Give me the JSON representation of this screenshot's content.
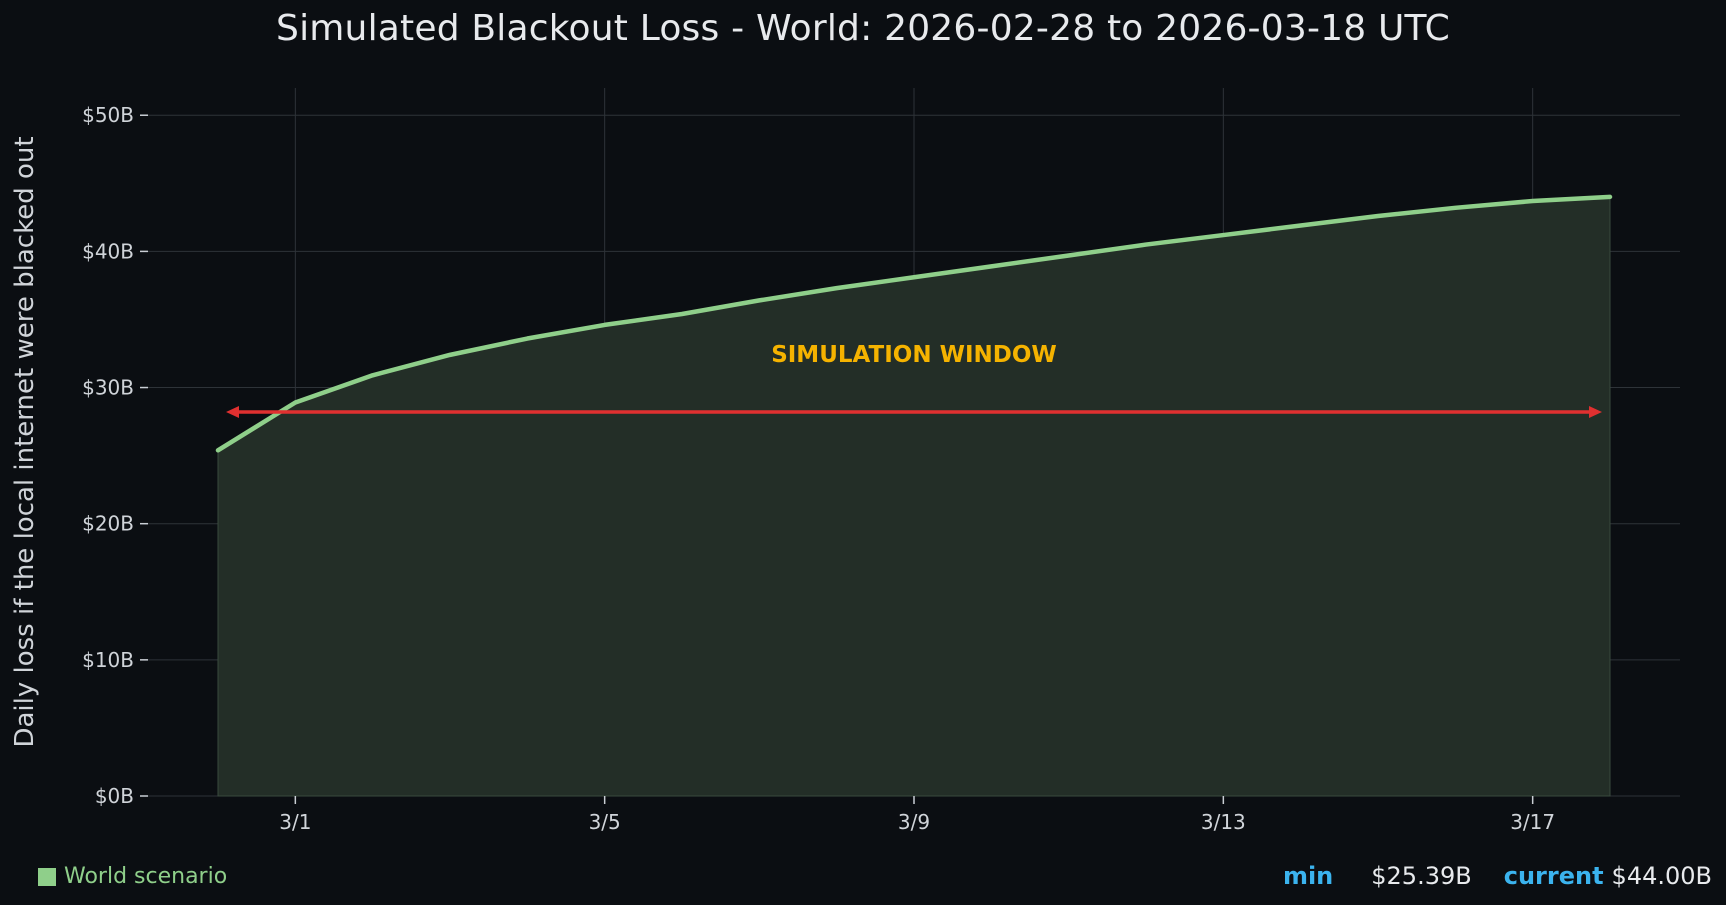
{
  "chart_data": {
    "type": "area",
    "title": "Simulated Blackout Loss - World: 2026-02-28 to 2026-03-18 UTC",
    "ylabel": "Daily loss if the local internet were blacked out",
    "xlabel": "",
    "x": [
      "2026-02-28",
      "2026-03-01",
      "2026-03-02",
      "2026-03-03",
      "2026-03-04",
      "2026-03-05",
      "2026-03-06",
      "2026-03-07",
      "2026-03-08",
      "2026-03-09",
      "2026-03-10",
      "2026-03-11",
      "2026-03-12",
      "2026-03-13",
      "2026-03-14",
      "2026-03-15",
      "2026-03-16",
      "2026-03-17",
      "2026-03-18"
    ],
    "series": [
      {
        "name": "World scenario",
        "values": [
          25.39,
          28.9,
          30.9,
          32.4,
          33.6,
          34.6,
          35.4,
          36.4,
          37.3,
          38.1,
          38.9,
          39.7,
          40.5,
          41.2,
          41.9,
          42.6,
          43.2,
          43.7,
          44.0
        ]
      }
    ],
    "ylim": [
      0,
      52
    ],
    "yticks": [
      0,
      10,
      20,
      30,
      40,
      50
    ],
    "ytick_labels": [
      "$0B",
      "$10B",
      "$20B",
      "$30B",
      "$40B",
      "$50B"
    ],
    "xticks": [
      "2026-03-01",
      "2026-03-05",
      "2026-03-09",
      "2026-03-13",
      "2026-03-17"
    ],
    "xtick_labels": [
      "3/1",
      "3/5",
      "3/9",
      "3/13",
      "3/17"
    ],
    "grid": true,
    "annotation": {
      "text": "SIMULATION WINDOW",
      "arrow_from": "2026-02-28",
      "arrow_to": "2026-03-18",
      "arrow_y": 28.2
    },
    "colors": {
      "line": "#8fcf8a",
      "fill": "#232e27",
      "arrow": "#e03030",
      "annotation": "#f5b300",
      "grid": "#2e3338"
    }
  },
  "legend": {
    "label": "World scenario"
  },
  "stats": {
    "min_label": "min",
    "min_value": "$25.39B",
    "current_label": "current",
    "current_value": "$44.00B"
  }
}
